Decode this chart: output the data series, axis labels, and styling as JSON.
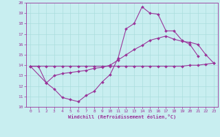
{
  "xlabel": "Windchill (Refroidissement éolien,°C)",
  "ylabel": "",
  "xlim": [
    -0.5,
    23.5
  ],
  "ylim": [
    10,
    20
  ],
  "xticks": [
    0,
    1,
    2,
    3,
    4,
    5,
    6,
    7,
    8,
    9,
    10,
    11,
    12,
    13,
    14,
    15,
    16,
    17,
    18,
    19,
    20,
    21,
    22,
    23
  ],
  "yticks": [
    10,
    11,
    12,
    13,
    14,
    15,
    16,
    17,
    18,
    19,
    20
  ],
  "bg_color": "#c8eef0",
  "line_color": "#993399",
  "grid_color": "#aadddd",
  "lines": [
    {
      "x": [
        0,
        1,
        2,
        3,
        4,
        5,
        6,
        7,
        8,
        9,
        10,
        11,
        12,
        13,
        14,
        15,
        16,
        17,
        18,
        19,
        20,
        21
      ],
      "y": [
        13.9,
        13.9,
        12.3,
        11.7,
        10.9,
        10.7,
        10.5,
        11.1,
        11.5,
        12.4,
        13.1,
        14.7,
        17.5,
        18.0,
        19.6,
        19.0,
        18.9,
        17.3,
        17.3,
        16.4,
        16.0,
        14.9
      ]
    },
    {
      "x": [
        0,
        2,
        3,
        4,
        5,
        6,
        7,
        8,
        9,
        10,
        11,
        12,
        13,
        14,
        15,
        16,
        17,
        18,
        19,
        20,
        21,
        22,
        23
      ],
      "y": [
        13.9,
        12.3,
        13.0,
        13.2,
        13.3,
        13.4,
        13.5,
        13.7,
        13.8,
        14.0,
        14.5,
        15.0,
        15.5,
        15.9,
        16.4,
        16.6,
        16.8,
        16.5,
        16.3,
        16.2,
        16.0,
        15.0,
        14.2
      ]
    },
    {
      "x": [
        0,
        1,
        2,
        3,
        4,
        5,
        6,
        7,
        8,
        9,
        10,
        11,
        12,
        13,
        14,
        15,
        16,
        17,
        18,
        19,
        20,
        21,
        22,
        23
      ],
      "y": [
        13.9,
        13.9,
        13.9,
        13.9,
        13.9,
        13.9,
        13.9,
        13.9,
        13.9,
        13.9,
        13.9,
        13.9,
        13.9,
        13.9,
        13.9,
        13.9,
        13.9,
        13.9,
        13.9,
        13.9,
        14.0,
        14.0,
        14.1,
        14.2
      ]
    }
  ]
}
